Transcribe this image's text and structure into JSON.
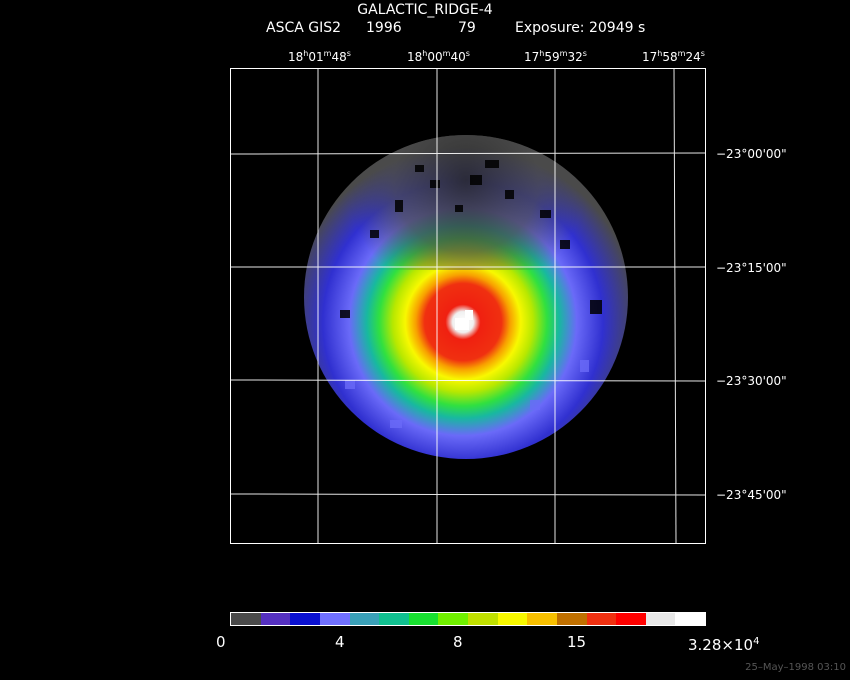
{
  "header": {
    "object": "GALACTIC_RIDGE-4",
    "instrument": "ASCA GIS2",
    "year": "1996",
    "day": "79",
    "exposure": "Exposure: 20949 s"
  },
  "ra_labels": [
    {
      "h": "18",
      "m": "01",
      "s": "48"
    },
    {
      "h": "18",
      "m": "00",
      "s": "40"
    },
    {
      "h": "17",
      "m": "59",
      "s": "32"
    },
    {
      "h": "17",
      "m": "58",
      "s": "24"
    }
  ],
  "dec_labels": [
    "−23°00'00\"",
    "−23°15'00\"",
    "−23°30'00\"",
    "−23°45'00\""
  ],
  "colorbar": {
    "colors": [
      "#4a4a4a",
      "#5530c0",
      "#0a10d0",
      "#7070ff",
      "#3aa0b8",
      "#10c090",
      "#18e030",
      "#70f000",
      "#c0e000",
      "#f8f800",
      "#f8c000",
      "#c07000",
      "#f03010",
      "#ff0000",
      "#e8e8e8",
      "#ffffff"
    ],
    "labels": [
      "0",
      "4",
      "8",
      "15"
    ],
    "max_label_base": "3.28×10",
    "max_label_exp": "4"
  },
  "timestamp": "25–May–1998 03:10"
}
